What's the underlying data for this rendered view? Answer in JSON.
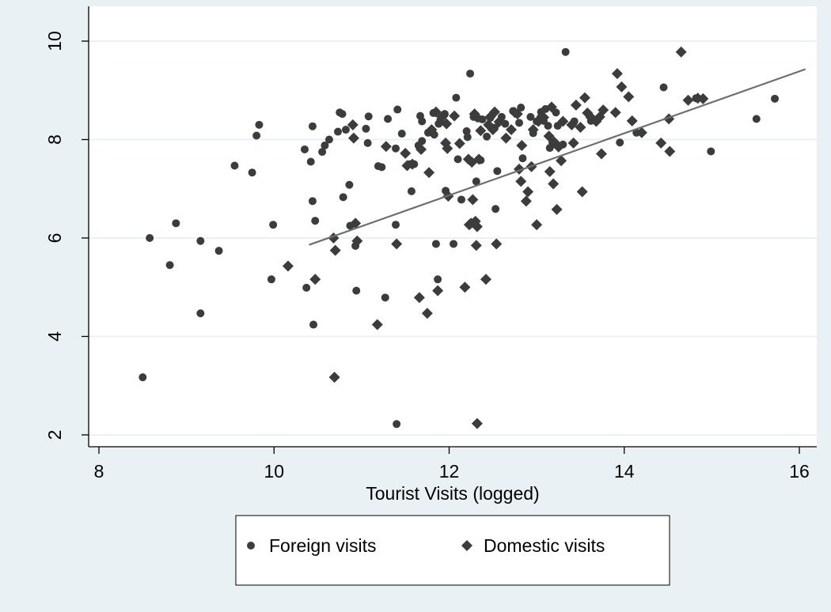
{
  "chart_data": {
    "type": "scatter",
    "title": "",
    "xlabel": "Tourist Visits (logged)",
    "ylabel": "",
    "xlim": [
      8,
      16.2
    ],
    "ylim": [
      1.7,
      10.3
    ],
    "x_ticks": [
      8,
      10,
      12,
      14,
      16
    ],
    "y_ticks": [
      2,
      4,
      6,
      8,
      10
    ],
    "grid": "horizontal",
    "legend_position": "bottom",
    "colors": {
      "background_outer": "#eaf1f4",
      "plot_background": "#ffffff",
      "gridline": "#eaf1f4",
      "marker": "#3c3c3c",
      "fit_line": "#6e6e6e"
    },
    "series": [
      {
        "name": "Foreign visits",
        "marker": "circle",
        "points": [
          [
            8.5,
            3.17
          ],
          [
            8.58,
            6.0
          ],
          [
            8.81,
            5.45
          ],
          [
            8.88,
            6.3
          ],
          [
            9.16,
            5.94
          ],
          [
            9.16,
            4.47
          ],
          [
            9.37,
            5.74
          ],
          [
            9.55,
            7.47
          ],
          [
            9.75,
            7.33
          ],
          [
            9.8,
            8.08
          ],
          [
            9.83,
            8.3
          ],
          [
            9.97,
            5.16
          ],
          [
            9.99,
            6.27
          ],
          [
            10.35,
            7.8
          ],
          [
            10.37,
            4.99
          ],
          [
            10.42,
            7.55
          ],
          [
            10.44,
            6.75
          ],
          [
            10.44,
            8.27
          ],
          [
            10.45,
            4.24
          ],
          [
            10.47,
            6.35
          ],
          [
            10.55,
            7.75
          ],
          [
            10.58,
            7.88
          ],
          [
            10.63,
            8.0
          ],
          [
            10.73,
            8.16
          ],
          [
            10.75,
            8.55
          ],
          [
            10.78,
            8.52
          ],
          [
            10.79,
            6.83
          ],
          [
            10.82,
            8.2
          ],
          [
            10.86,
            7.08
          ],
          [
            10.87,
            6.25
          ],
          [
            10.91,
            8.03
          ],
          [
            10.93,
            5.84
          ],
          [
            10.94,
            4.93
          ],
          [
            11.05,
            8.22
          ],
          [
            11.07,
            7.93
          ],
          [
            11.08,
            8.47
          ],
          [
            11.19,
            7.46
          ],
          [
            11.23,
            7.44
          ],
          [
            11.27,
            4.79
          ],
          [
            11.3,
            8.42
          ],
          [
            11.39,
            7.82
          ],
          [
            11.39,
            6.27
          ],
          [
            11.4,
            2.22
          ],
          [
            11.41,
            8.61
          ],
          [
            11.46,
            8.12
          ],
          [
            11.55,
            7.5
          ],
          [
            11.57,
            6.95
          ],
          [
            11.6,
            7.5
          ],
          [
            11.65,
            7.88
          ],
          [
            11.67,
            8.48
          ],
          [
            11.69,
            7.97
          ],
          [
            11.69,
            8.37
          ],
          [
            11.76,
            8.14
          ],
          [
            11.82,
            8.54
          ],
          [
            11.83,
            8.1
          ],
          [
            11.85,
            5.88
          ],
          [
            11.87,
            5.16
          ],
          [
            11.88,
            8.32
          ],
          [
            11.9,
            8.4
          ],
          [
            11.95,
            8.52
          ],
          [
            11.96,
            6.96
          ],
          [
            12.05,
            5.88
          ],
          [
            12.08,
            8.85
          ],
          [
            12.1,
            7.6
          ],
          [
            12.14,
            6.78
          ],
          [
            12.2,
            8.17
          ],
          [
            12.21,
            8.05
          ],
          [
            12.24,
            9.34
          ],
          [
            12.28,
            8.46
          ],
          [
            12.31,
            7.15
          ],
          [
            12.33,
            8.43
          ],
          [
            12.36,
            7.58
          ],
          [
            12.38,
            8.41
          ],
          [
            12.43,
            8.06
          ],
          [
            12.47,
            8.44
          ],
          [
            12.52,
            8.24
          ],
          [
            12.53,
            6.59
          ],
          [
            12.55,
            7.36
          ],
          [
            12.6,
            8.46
          ],
          [
            12.64,
            8.32
          ],
          [
            12.73,
            8.58
          ],
          [
            12.8,
            8.34
          ],
          [
            12.82,
            8.65
          ],
          [
            12.84,
            7.62
          ],
          [
            12.93,
            8.46
          ],
          [
            12.96,
            8.13
          ],
          [
            13.0,
            8.37
          ],
          [
            13.04,
            8.44
          ],
          [
            13.05,
            8.56
          ],
          [
            13.08,
            8.38
          ],
          [
            13.1,
            8.62
          ],
          [
            13.13,
            8.28
          ],
          [
            13.15,
            7.83
          ],
          [
            13.18,
            7.94
          ],
          [
            13.22,
            8.55
          ],
          [
            13.24,
            8.28
          ],
          [
            13.3,
            7.9
          ],
          [
            13.33,
            9.78
          ],
          [
            13.43,
            8.37
          ],
          [
            13.62,
            8.38
          ],
          [
            13.95,
            7.94
          ],
          [
            14.14,
            8.14
          ],
          [
            14.45,
            9.06
          ],
          [
            14.82,
            8.84
          ],
          [
            14.99,
            7.76
          ],
          [
            15.51,
            8.42
          ],
          [
            15.72,
            8.83
          ]
        ]
      },
      {
        "name": "Domestic visits",
        "marker": "diamond",
        "points": [
          [
            10.16,
            5.43
          ],
          [
            10.47,
            5.16
          ],
          [
            10.68,
            6.0
          ],
          [
            10.69,
            3.17
          ],
          [
            10.7,
            5.75
          ],
          [
            10.9,
            8.3
          ],
          [
            10.91,
            8.03
          ],
          [
            10.93,
            6.3
          ],
          [
            10.95,
            5.94
          ],
          [
            11.18,
            4.24
          ],
          [
            11.28,
            7.86
          ],
          [
            11.4,
            5.88
          ],
          [
            11.5,
            7.72
          ],
          [
            11.52,
            7.47
          ],
          [
            11.58,
            7.5
          ],
          [
            11.66,
            4.79
          ],
          [
            11.68,
            7.8
          ],
          [
            11.75,
            4.47
          ],
          [
            11.77,
            7.33
          ],
          [
            11.8,
            8.2
          ],
          [
            11.85,
            8.56
          ],
          [
            11.87,
            4.93
          ],
          [
            11.92,
            8.46
          ],
          [
            11.96,
            7.93
          ],
          [
            11.97,
            8.32
          ],
          [
            11.98,
            7.82
          ],
          [
            11.99,
            6.85
          ],
          [
            12.06,
            8.48
          ],
          [
            12.12,
            7.92
          ],
          [
            12.18,
            5.0
          ],
          [
            12.22,
            7.6
          ],
          [
            12.23,
            6.27
          ],
          [
            12.25,
            6.3
          ],
          [
            12.26,
            7.54
          ],
          [
            12.27,
            6.78
          ],
          [
            12.29,
            8.52
          ],
          [
            12.3,
            6.34
          ],
          [
            12.31,
            5.85
          ],
          [
            12.32,
            6.23
          ],
          [
            12.32,
            2.23
          ],
          [
            12.34,
            7.6
          ],
          [
            12.36,
            8.18
          ],
          [
            12.42,
            5.16
          ],
          [
            12.45,
            8.3
          ],
          [
            12.47,
            8.46
          ],
          [
            12.5,
            8.2
          ],
          [
            12.52,
            8.56
          ],
          [
            12.54,
            5.88
          ],
          [
            12.57,
            8.36
          ],
          [
            12.65,
            8.03
          ],
          [
            12.71,
            8.2
          ],
          [
            12.75,
            8.55
          ],
          [
            12.78,
            8.52
          ],
          [
            12.8,
            7.4
          ],
          [
            12.82,
            7.15
          ],
          [
            12.83,
            7.88
          ],
          [
            12.88,
            6.75
          ],
          [
            12.9,
            6.94
          ],
          [
            12.94,
            7.45
          ],
          [
            12.96,
            8.2
          ],
          [
            13.0,
            6.27
          ],
          [
            13.02,
            8.37
          ],
          [
            13.08,
            8.45
          ],
          [
            13.14,
            8.07
          ],
          [
            13.15,
            7.35
          ],
          [
            13.17,
            8.66
          ],
          [
            13.19,
            7.1
          ],
          [
            13.2,
            7.95
          ],
          [
            13.23,
            6.58
          ],
          [
            13.25,
            7.85
          ],
          [
            13.28,
            7.57
          ],
          [
            13.3,
            8.37
          ],
          [
            13.4,
            8.3
          ],
          [
            13.42,
            7.93
          ],
          [
            13.45,
            8.7
          ],
          [
            13.5,
            8.25
          ],
          [
            13.52,
            6.94
          ],
          [
            13.55,
            8.85
          ],
          [
            13.58,
            8.54
          ],
          [
            13.62,
            8.45
          ],
          [
            13.68,
            8.37
          ],
          [
            13.72,
            8.46
          ],
          [
            13.74,
            7.71
          ],
          [
            13.76,
            8.6
          ],
          [
            13.9,
            8.55
          ],
          [
            13.92,
            9.34
          ],
          [
            13.97,
            9.07
          ],
          [
            14.05,
            8.87
          ],
          [
            14.09,
            8.38
          ],
          [
            14.2,
            8.14
          ],
          [
            14.42,
            7.93
          ],
          [
            14.51,
            8.42
          ],
          [
            14.52,
            7.76
          ],
          [
            14.65,
            9.78
          ],
          [
            14.73,
            8.8
          ],
          [
            14.84,
            8.84
          ],
          [
            14.9,
            8.83
          ]
        ]
      }
    ],
    "fit_line": {
      "x": [
        10.4,
        16.07
      ],
      "y": [
        5.86,
        9.43
      ]
    }
  }
}
